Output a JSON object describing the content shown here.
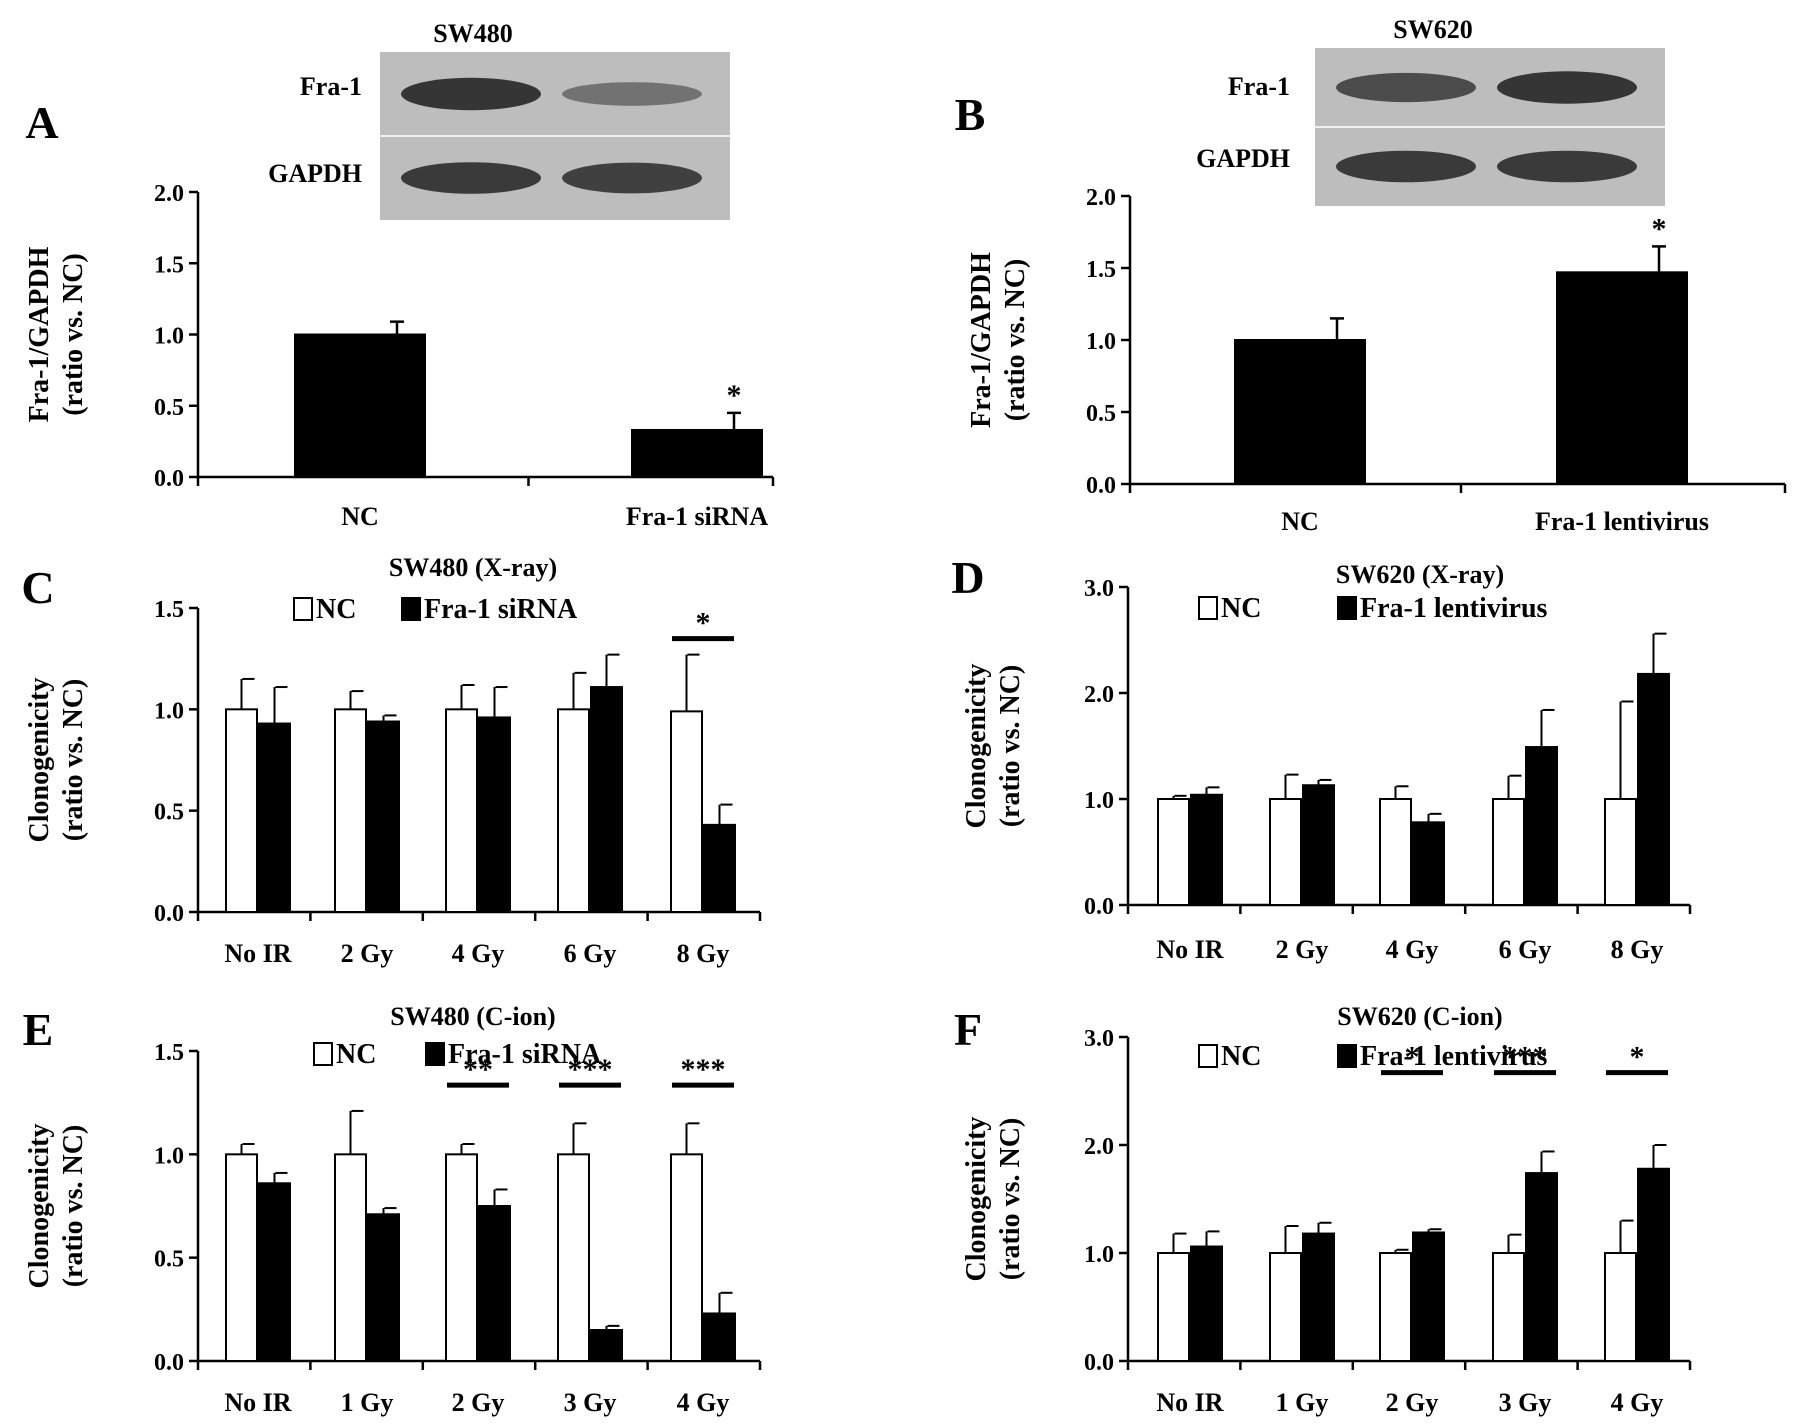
{
  "colors": {
    "nc": "#ffffff",
    "treatment": "#000000",
    "axis": "#000000",
    "blot_bg": "#bdbdbd",
    "band": "#2a2a2a"
  },
  "chart_data": [
    {
      "panel": "A",
      "type": "bar",
      "blot": {
        "cell_line": "SW480",
        "rows": [
          "Fra-1",
          "GAPDH"
        ],
        "band_intensity": [
          [
            0.9,
            0.35
          ],
          [
            0.85,
            0.8
          ]
        ]
      },
      "ylabel": [
        "Fra-1/GAPDH",
        "(ratio vs. NC)"
      ],
      "ylim": [
        0,
        2.0
      ],
      "yticks": [
        0.0,
        0.5,
        1.0,
        1.5,
        2.0
      ],
      "ytick_labels": [
        "0.0",
        "0.5",
        "1.0",
        "1.5",
        "2.0"
      ],
      "categories": [
        "NC",
        "Fra-1 siRNA"
      ],
      "series": [
        {
          "values": [
            1.0,
            0.33
          ],
          "errors": [
            0.09,
            0.12
          ],
          "color": "#000000"
        }
      ],
      "significance": [
        {
          "index": 1,
          "label": "*",
          "bracket": false
        }
      ]
    },
    {
      "panel": "B",
      "type": "bar",
      "blot": {
        "cell_line": "SW620",
        "rows": [
          "Fra-1",
          "GAPDH"
        ],
        "band_intensity": [
          [
            0.7,
            0.9
          ],
          [
            0.85,
            0.85
          ]
        ]
      },
      "ylabel": [
        "Fra-1/GAPDH",
        "(ratio vs. NC)"
      ],
      "ylim": [
        0,
        2.0
      ],
      "yticks": [
        0.0,
        0.5,
        1.0,
        1.5,
        2.0
      ],
      "ytick_labels": [
        "0.0",
        "0.5",
        "1.0",
        "1.5",
        "2.0"
      ],
      "categories": [
        "NC",
        "Fra-1 lentivirus"
      ],
      "series": [
        {
          "values": [
            1.0,
            1.47
          ],
          "errors": [
            0.15,
            0.18
          ],
          "color": "#000000"
        }
      ],
      "significance": [
        {
          "index": 1,
          "label": "*",
          "bracket": false
        }
      ]
    },
    {
      "panel": "C",
      "type": "bar",
      "title": "SW480 (X-ray)",
      "ylabel": [
        "Clonogenicity",
        "(ratio vs. NC)"
      ],
      "ylim": [
        0,
        1.5
      ],
      "yticks": [
        0.0,
        0.5,
        1.0,
        1.5
      ],
      "ytick_labels": [
        "0.0",
        "0.5",
        "1.0",
        "1.5"
      ],
      "categories": [
        "No IR",
        "2 Gy",
        "4 Gy",
        "6 Gy",
        "8 Gy"
      ],
      "series": [
        {
          "name": "NC",
          "values": [
            1.0,
            1.0,
            1.0,
            1.0,
            0.99
          ],
          "errors": [
            0.15,
            0.09,
            0.12,
            0.18,
            0.28
          ],
          "color": "#ffffff"
        },
        {
          "name": "Fra-1 siRNA",
          "values": [
            0.93,
            0.94,
            0.96,
            1.11,
            0.43
          ],
          "errors": [
            0.18,
            0.03,
            0.15,
            0.16,
            0.1
          ],
          "color": "#000000"
        }
      ],
      "legend": "top",
      "significance": [
        {
          "index": 4,
          "label": "*",
          "bracket": true
        }
      ]
    },
    {
      "panel": "D",
      "type": "bar",
      "title": "SW620 (X-ray)",
      "ylabel": [
        "Clonogenicity",
        "(ratio vs. NC)"
      ],
      "ylim": [
        0,
        3.0
      ],
      "yticks": [
        0.0,
        1.0,
        2.0,
        3.0
      ],
      "ytick_labels": [
        "0.0",
        "1.0",
        "2.0",
        "3.0"
      ],
      "categories": [
        "No IR",
        "2 Gy",
        "4 Gy",
        "6 Gy",
        "8 Gy"
      ],
      "series": [
        {
          "name": "NC",
          "values": [
            1.0,
            1.0,
            1.0,
            1.0,
            1.0
          ],
          "errors": [
            0.03,
            0.23,
            0.12,
            0.22,
            0.92
          ],
          "color": "#ffffff"
        },
        {
          "name": "Fra-1 lentivirus",
          "values": [
            1.04,
            1.13,
            0.78,
            1.49,
            2.18
          ],
          "errors": [
            0.07,
            0.05,
            0.08,
            0.35,
            0.38
          ],
          "color": "#000000"
        }
      ],
      "legend": "top",
      "significance": []
    },
    {
      "panel": "E",
      "type": "bar",
      "title": "SW480 (C-ion)",
      "ylabel": [
        "Clonogenicity",
        "(ratio vs. NC)"
      ],
      "ylim": [
        0,
        1.5
      ],
      "yticks": [
        0.0,
        0.5,
        1.0,
        1.5
      ],
      "ytick_labels": [
        "0.0",
        "0.5",
        "1.0",
        "1.5"
      ],
      "categories": [
        "No IR",
        "1 Gy",
        "2 Gy",
        "3 Gy",
        "4 Gy"
      ],
      "series": [
        {
          "name": "NC",
          "values": [
            1.0,
            1.0,
            1.0,
            1.0,
            1.0
          ],
          "errors": [
            0.05,
            0.21,
            0.05,
            0.15,
            0.15
          ],
          "color": "#ffffff"
        },
        {
          "name": "Fra-1 siRNA",
          "values": [
            0.86,
            0.71,
            0.75,
            0.15,
            0.23
          ],
          "errors": [
            0.05,
            0.03,
            0.08,
            0.02,
            0.1
          ],
          "color": "#000000"
        }
      ],
      "legend": "top",
      "significance": [
        {
          "index": 2,
          "label": "**",
          "bracket": true
        },
        {
          "index": 3,
          "label": "***",
          "bracket": true
        },
        {
          "index": 4,
          "label": "***",
          "bracket": true
        }
      ]
    },
    {
      "panel": "F",
      "type": "bar",
      "title": "SW620 (C-ion)",
      "ylabel": [
        "Clonogenicity",
        "(ratio vs. NC)"
      ],
      "ylim": [
        0,
        3.0
      ],
      "yticks": [
        0.0,
        1.0,
        2.0,
        3.0
      ],
      "ytick_labels": [
        "0.0",
        "1.0",
        "2.0",
        "3.0"
      ],
      "categories": [
        "No IR",
        "1 Gy",
        "2 Gy",
        "3 Gy",
        "4 Gy"
      ],
      "series": [
        {
          "name": "NC",
          "values": [
            1.0,
            1.0,
            1.0,
            1.0,
            1.0
          ],
          "errors": [
            0.18,
            0.25,
            0.03,
            0.17,
            0.3
          ],
          "color": "#ffffff"
        },
        {
          "name": "Fra-1 lentivirus",
          "values": [
            1.06,
            1.18,
            1.19,
            1.74,
            1.78
          ],
          "errors": [
            0.14,
            0.1,
            0.03,
            0.2,
            0.22
          ],
          "color": "#000000"
        }
      ],
      "legend": "top",
      "significance": [
        {
          "index": 2,
          "label": "*",
          "bracket": true
        },
        {
          "index": 3,
          "label": "***",
          "bracket": true
        },
        {
          "index": 4,
          "label": "*",
          "bracket": true
        }
      ]
    }
  ]
}
